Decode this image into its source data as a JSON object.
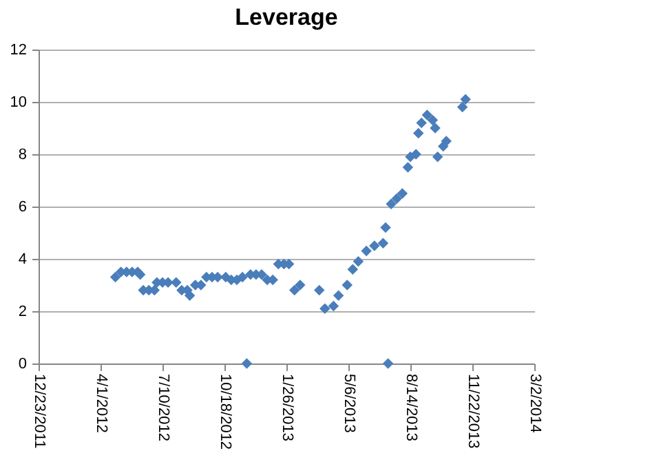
{
  "chart_data": {
    "type": "scatter",
    "title": "Leverage",
    "x": [
      "2012-04-25",
      "2012-05-04",
      "2012-05-13",
      "2012-05-22",
      "2012-05-31",
      "2012-06-04",
      "2012-06-09",
      "2012-06-18",
      "2012-06-27",
      "2012-07-01",
      "2012-07-10",
      "2012-07-19",
      "2012-08-01",
      "2012-08-10",
      "2012-08-19",
      "2012-08-23",
      "2012-09-01",
      "2012-09-10",
      "2012-09-19",
      "2012-09-28",
      "2012-10-07",
      "2012-10-20",
      "2012-10-29",
      "2012-11-07",
      "2012-11-16",
      "2012-11-23",
      "2012-11-29",
      "2012-12-08",
      "2012-12-17",
      "2012-12-26",
      "2013-01-04",
      "2013-01-13",
      "2013-01-22",
      "2013-01-30",
      "2013-02-08",
      "2013-02-17",
      "2013-03-20",
      "2013-03-29",
      "2013-04-12",
      "2013-04-20",
      "2013-05-04",
      "2013-05-13",
      "2013-05-22",
      "2013-06-04",
      "2013-06-17",
      "2013-07-01",
      "2013-07-05",
      "2013-07-09",
      "2013-07-14",
      "2013-07-23",
      "2013-08-01",
      "2013-08-10",
      "2013-08-14",
      "2013-08-23",
      "2013-08-27",
      "2013-09-01",
      "2013-09-10",
      "2013-09-19",
      "2013-09-23",
      "2013-09-27",
      "2013-10-06",
      "2013-10-11",
      "2013-11-06",
      "2013-11-11"
    ],
    "series": [
      {
        "color": "#4a7ebb",
        "values": [
          3.3,
          3.5,
          3.5,
          3.5,
          3.5,
          3.4,
          2.8,
          2.8,
          2.8,
          3.1,
          3.1,
          3.1,
          3.1,
          2.8,
          2.8,
          2.6,
          3.0,
          3.0,
          3.3,
          3.3,
          3.3,
          3.3,
          3.2,
          3.2,
          3.3,
          0,
          3.4,
          3.4,
          3.4,
          3.2,
          3.2,
          3.8,
          3.8,
          3.8,
          2.8,
          3.0,
          2.8,
          2.1,
          2.2,
          2.6,
          3.0,
          3.6,
          3.9,
          4.3,
          4.5,
          4.6,
          5.2,
          0,
          6.1,
          6.3,
          6.5,
          7.5,
          7.9,
          8.0,
          8.8,
          9.2,
          9.5,
          9.3,
          9.0,
          7.9,
          8.3,
          8.5,
          9.8,
          10.1
        ]
      }
    ],
    "xlim": [
      "2011-12-23",
      "2014-03-02"
    ],
    "xticks": [
      {
        "value": "2011-12-23",
        "label": "12/23/2011"
      },
      {
        "value": "2012-04-01",
        "label": "4/1/2012"
      },
      {
        "value": "2012-07-10",
        "label": "7/10/2012"
      },
      {
        "value": "2012-10-18",
        "label": "10/18/2012"
      },
      {
        "value": "2013-01-26",
        "label": "1/26/2013"
      },
      {
        "value": "2013-05-06",
        "label": "5/6/2013"
      },
      {
        "value": "2013-08-14",
        "label": "8/14/2013"
      },
      {
        "value": "2013-11-22",
        "label": "11/22/2013"
      },
      {
        "value": "2014-03-02",
        "label": "3/2/2014"
      }
    ],
    "ylim": [
      0,
      12
    ],
    "yticks": [
      0,
      2,
      4,
      6,
      8,
      10,
      12
    ],
    "grid": "y",
    "marker": "diamond",
    "legend": false
  }
}
